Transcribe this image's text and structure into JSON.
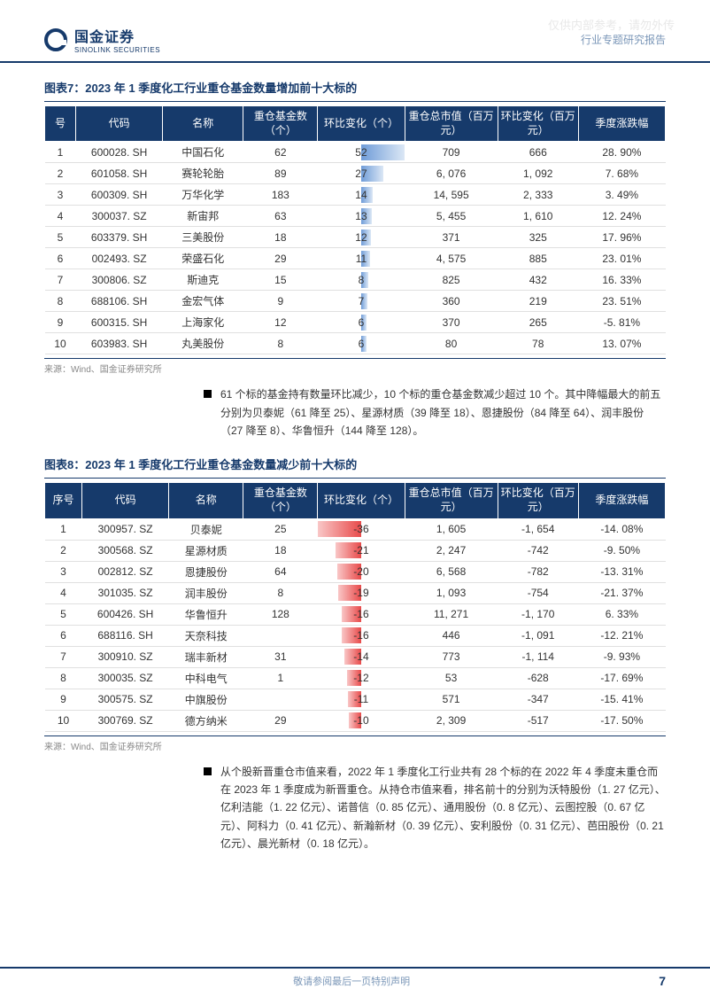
{
  "watermark": "仅供内部参考，请勿外传",
  "header": {
    "logo_cn": "国金证券",
    "logo_en": "SINOLINK SECURITIES",
    "right": "行业专题研究报告"
  },
  "chart7": {
    "title": "图表7：2023 年 1 季度化工行业重仓基金数量增加前十大标的",
    "columns": [
      "号",
      "代码",
      "名称",
      "重仓基金数（个）",
      "环比变化（个）",
      "重仓总市值（百万元）",
      "环比变化（百万元）",
      "季度涨跌幅"
    ],
    "col_widths": [
      "5%",
      "14%",
      "13%",
      "12%",
      "14%",
      "15%",
      "13%",
      "14%"
    ],
    "bar_col_index": 4,
    "bar_max": 52,
    "bar_gradient_from": "#6f9cd8",
    "bar_gradient_to": "#dbe7f5",
    "rows": [
      {
        "seq": "1",
        "code": "600028. SH",
        "name": "中国石化",
        "funds": "62",
        "delta": 52,
        "mv": "709",
        "mv_delta": "666",
        "ret": "28. 90%"
      },
      {
        "seq": "2",
        "code": "601058. SH",
        "name": "赛轮轮胎",
        "funds": "89",
        "delta": 27,
        "mv": "6, 076",
        "mv_delta": "1, 092",
        "ret": "7. 68%"
      },
      {
        "seq": "3",
        "code": "600309. SH",
        "name": "万华化学",
        "funds": "183",
        "delta": 14,
        "mv": "14, 595",
        "mv_delta": "2, 333",
        "ret": "3. 49%"
      },
      {
        "seq": "4",
        "code": "300037. SZ",
        "name": "新宙邦",
        "funds": "63",
        "delta": 13,
        "mv": "5, 455",
        "mv_delta": "1, 610",
        "ret": "12. 24%"
      },
      {
        "seq": "5",
        "code": "603379. SH",
        "name": "三美股份",
        "funds": "18",
        "delta": 12,
        "mv": "371",
        "mv_delta": "325",
        "ret": "17. 96%"
      },
      {
        "seq": "6",
        "code": "002493. SZ",
        "name": "荣盛石化",
        "funds": "29",
        "delta": 11,
        "mv": "4, 575",
        "mv_delta": "885",
        "ret": "23. 01%"
      },
      {
        "seq": "7",
        "code": "300806. SZ",
        "name": "斯迪克",
        "funds": "15",
        "delta": 8,
        "mv": "825",
        "mv_delta": "432",
        "ret": "16. 33%"
      },
      {
        "seq": "8",
        "code": "688106. SH",
        "name": "金宏气体",
        "funds": "9",
        "delta": 7,
        "mv": "360",
        "mv_delta": "219",
        "ret": "23. 51%"
      },
      {
        "seq": "9",
        "code": "600315. SH",
        "name": "上海家化",
        "funds": "12",
        "delta": 6,
        "mv": "370",
        "mv_delta": "265",
        "ret": "-5. 81%"
      },
      {
        "seq": "10",
        "code": "603983. SH",
        "name": "丸美股份",
        "funds": "8",
        "delta": 6,
        "mv": "80",
        "mv_delta": "78",
        "ret": "13. 07%"
      }
    ],
    "source": "来源：Wind、国金证券研究所"
  },
  "bullet1": "61 个标的基金持有数量环比减少，10 个标的重仓基金数减少超过 10 个。其中降幅最大的前五分别为贝泰妮（61 降至 25）、星源材质（39 降至 18）、恩捷股份（84 降至 64）、润丰股份（27 降至 8）、华鲁恒升（144 降至 128）。",
  "chart8": {
    "title": "图表8：2023 年 1 季度化工行业重仓基金数量减少前十大标的",
    "columns": [
      "序号",
      "代码",
      "名称",
      "重仓基金数（个）",
      "环比变化（个）",
      "重仓总市值（百万元）",
      "环比变化（百万元）",
      "季度涨跌幅"
    ],
    "col_widths": [
      "6%",
      "14%",
      "12%",
      "12%",
      "14%",
      "15%",
      "13%",
      "14%"
    ],
    "bar_col_index": 4,
    "bar_max": 36,
    "bar_gradient_from": "#e84a4a",
    "bar_gradient_to": "#f9c7c7",
    "rows": [
      {
        "seq": "1",
        "code": "300957. SZ",
        "name": "贝泰妮",
        "funds": "25",
        "delta": -36,
        "mv": "1, 605",
        "mv_delta": "-1, 654",
        "ret": "-14. 08%"
      },
      {
        "seq": "2",
        "code": "300568. SZ",
        "name": "星源材质",
        "funds": "18",
        "delta": -21,
        "mv": "2, 247",
        "mv_delta": "-742",
        "ret": "-9. 50%"
      },
      {
        "seq": "3",
        "code": "002812. SZ",
        "name": "恩捷股份",
        "funds": "64",
        "delta": -20,
        "mv": "6, 568",
        "mv_delta": "-782",
        "ret": "-13. 31%"
      },
      {
        "seq": "4",
        "code": "301035. SZ",
        "name": "润丰股份",
        "funds": "8",
        "delta": -19,
        "mv": "1, 093",
        "mv_delta": "-754",
        "ret": "-21. 37%"
      },
      {
        "seq": "5",
        "code": "600426. SH",
        "name": "华鲁恒升",
        "funds": "128",
        "delta": -16,
        "mv": "11, 271",
        "mv_delta": "-1, 170",
        "ret": "6. 33%"
      },
      {
        "seq": "6",
        "code": "688116. SH",
        "name": "天奈科技",
        "funds": "",
        "delta": -16,
        "mv": "446",
        "mv_delta": "-1, 091",
        "ret": "-12. 21%"
      },
      {
        "seq": "7",
        "code": "300910. SZ",
        "name": "瑞丰新材",
        "funds": "31",
        "delta": -14,
        "mv": "773",
        "mv_delta": "-1, 114",
        "ret": "-9. 93%"
      },
      {
        "seq": "8",
        "code": "300035. SZ",
        "name": "中科电气",
        "funds": "1",
        "delta": -12,
        "mv": "53",
        "mv_delta": "-628",
        "ret": "-17. 69%"
      },
      {
        "seq": "9",
        "code": "300575. SZ",
        "name": "中旗股份",
        "funds": "",
        "delta": -11,
        "mv": "571",
        "mv_delta": "-347",
        "ret": "-15. 41%"
      },
      {
        "seq": "10",
        "code": "300769. SZ",
        "name": "德方纳米",
        "funds": "29",
        "delta": -10,
        "mv": "2, 309",
        "mv_delta": "-517",
        "ret": "-17. 50%"
      }
    ],
    "source": "来源：Wind、国金证券研究所"
  },
  "bullet2": "从个股新晋重仓市值来看，2022 年 1 季度化工行业共有 28 个标的在 2022 年 4 季度未重仓而在 2023 年 1 季度成为新晋重仓。从持仓市值来看，排名前十的分别为沃特股份（1. 27 亿元）、亿利洁能（1. 22 亿元）、诺普信（0. 85 亿元）、通用股份（0. 8 亿元）、云图控股（0. 67 亿元）、阿科力（0. 41 亿元）、新瀚新材（0. 39 亿元）、安利股份（0. 31 亿元）、芭田股份（0. 21 亿元）、晨光新材（0. 18 亿元）。",
  "footer": {
    "left": "敬请参阅最后一页特别声明",
    "page": "7"
  }
}
